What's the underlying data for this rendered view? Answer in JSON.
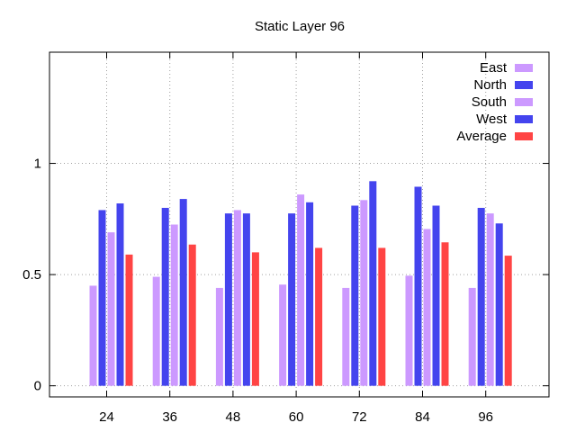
{
  "chart_data": {
    "type": "bar",
    "title": "Static Layer 96",
    "xlabel": "",
    "ylabel": "",
    "categories": [
      "24",
      "36",
      "48",
      "60",
      "72",
      "84",
      "96"
    ],
    "ylim": [
      -0.05,
      1.5
    ],
    "yticks": [
      {
        "value": 0,
        "label": "0"
      },
      {
        "value": 0.5,
        "label": "0.5"
      },
      {
        "value": 1,
        "label": "1"
      }
    ],
    "grid": true,
    "legend_position": "top-right",
    "series": [
      {
        "name": "East",
        "color": "#cc99ff",
        "values": [
          0.45,
          0.49,
          0.44,
          0.455,
          0.44,
          0.495,
          0.44
        ]
      },
      {
        "name": "North",
        "color": "#4444ee",
        "values": [
          0.79,
          0.8,
          0.775,
          0.775,
          0.81,
          0.895,
          0.8
        ]
      },
      {
        "name": "South",
        "color": "#cc99ff",
        "values": [
          0.69,
          0.725,
          0.79,
          0.86,
          0.835,
          0.705,
          0.775
        ]
      },
      {
        "name": "West",
        "color": "#4444ee",
        "values": [
          0.82,
          0.84,
          0.775,
          0.825,
          0.92,
          0.81,
          0.73
        ]
      },
      {
        "name": "Average",
        "color": "#ff4444",
        "values": [
          0.59,
          0.635,
          0.6,
          0.62,
          0.62,
          0.645,
          0.585
        ]
      }
    ]
  }
}
